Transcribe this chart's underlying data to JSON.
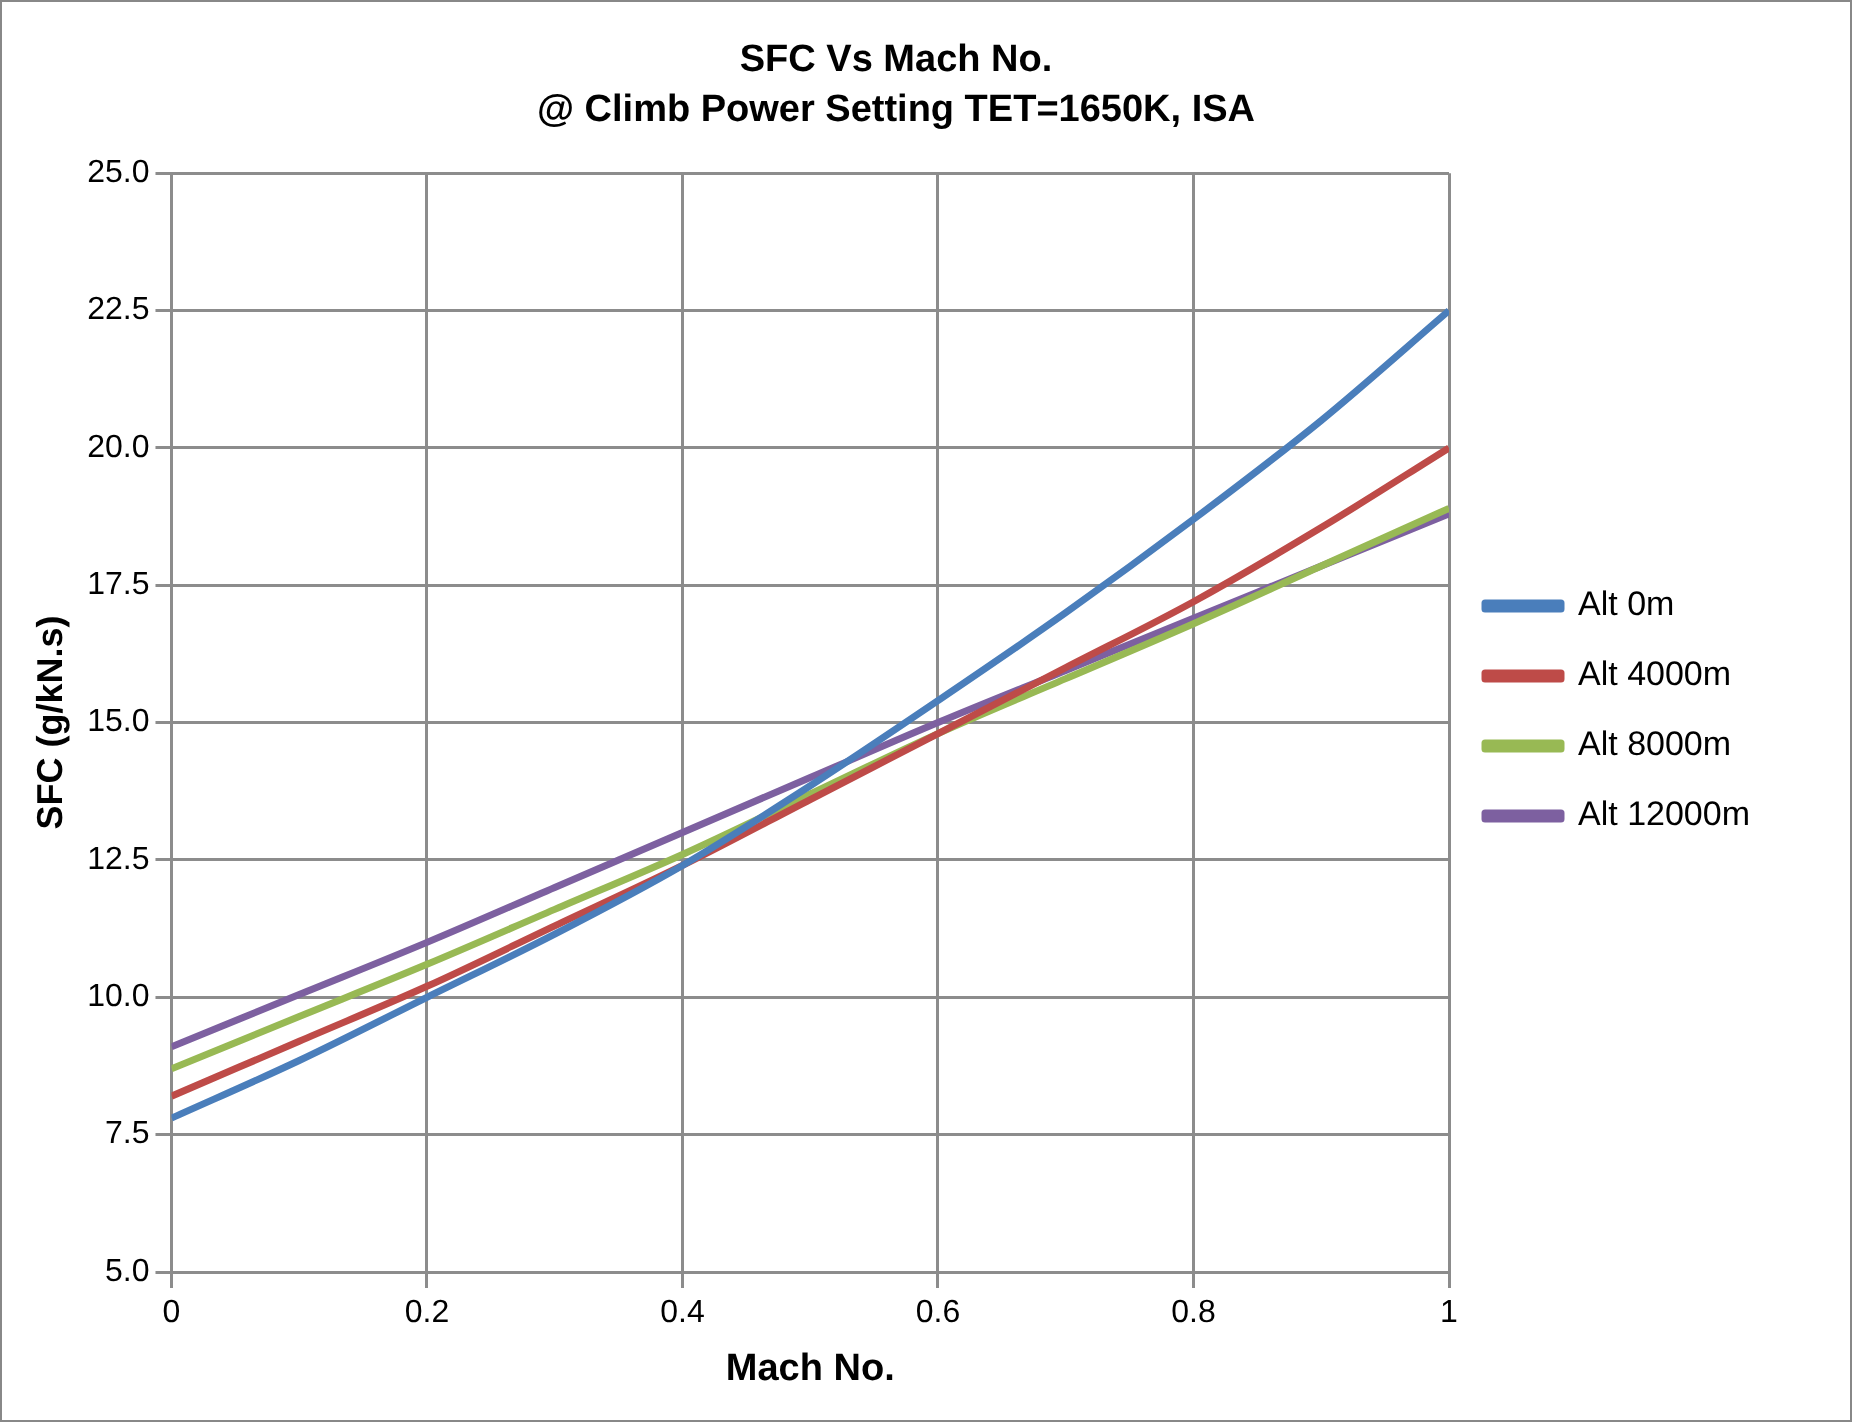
{
  "chart_data": {
    "type": "line",
    "title": "SFC Vs Mach No.",
    "subtitle": "@ Climb Power Setting TET=1650K, ISA",
    "xlabel": "Mach No.",
    "ylabel": "SFC (g/kN.s)",
    "x": [
      0,
      0.1,
      0.2,
      0.3,
      0.4,
      0.5,
      0.6,
      0.7,
      0.8,
      0.9,
      1
    ],
    "series": [
      {
        "name": "Alt 0m",
        "color": "#4a7ebb",
        "values": [
          7.8,
          8.85,
          10.0,
          11.15,
          12.4,
          13.85,
          15.4,
          17.0,
          18.7,
          20.5,
          22.5
        ]
      },
      {
        "name": "Alt 4000m",
        "color": "#be4b48",
        "values": [
          8.2,
          9.2,
          10.2,
          11.3,
          12.4,
          13.6,
          14.8,
          16.0,
          17.2,
          18.55,
          20.0
        ]
      },
      {
        "name": "Alt 8000m",
        "color": "#98b954",
        "values": [
          8.7,
          9.65,
          10.6,
          11.6,
          12.6,
          13.7,
          14.8,
          15.8,
          16.8,
          17.85,
          18.9
        ]
      },
      {
        "name": "Alt 12000m",
        "color": "#7d60a0",
        "values": [
          9.1,
          10.05,
          11.0,
          12.0,
          13.0,
          14.0,
          15.0,
          15.95,
          16.9,
          17.85,
          18.8
        ]
      }
    ],
    "xlim": [
      0,
      1
    ],
    "xticks": [
      0,
      0.2,
      0.4,
      0.6,
      0.8,
      1
    ],
    "ylim": [
      5,
      25
    ],
    "yticks": [
      {
        "value": 5,
        "label": "5.0"
      },
      {
        "value": 7.5,
        "label": "7.5"
      },
      {
        "value": 10,
        "label": "10.0"
      },
      {
        "value": 12.5,
        "label": "12.5"
      },
      {
        "value": 15,
        "label": "15.0"
      },
      {
        "value": 17.5,
        "label": "17.5"
      },
      {
        "value": 20,
        "label": "20.0"
      },
      {
        "value": 22.5,
        "label": "22.5"
      },
      {
        "value": 25,
        "label": "25.0"
      }
    ],
    "grid": true,
    "legend": "right",
    "marker": "none",
    "line_style": "solid"
  }
}
